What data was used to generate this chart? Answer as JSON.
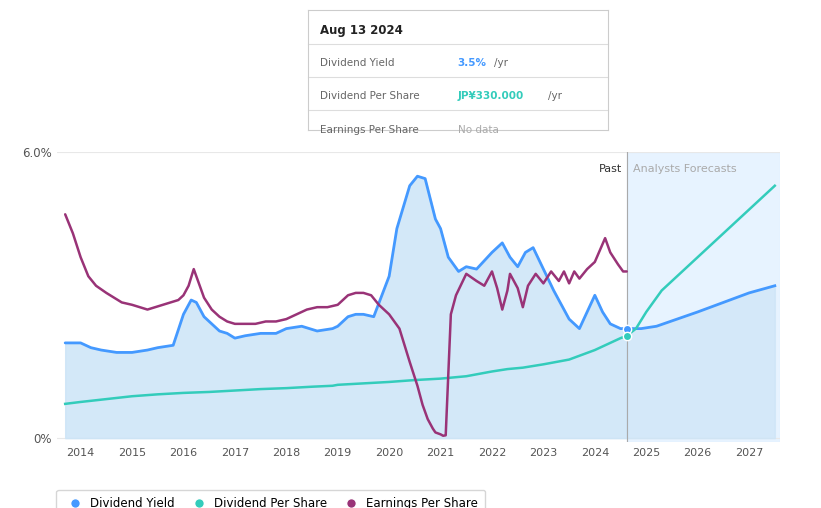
{
  "title_box": {
    "date": "Aug 13 2024",
    "dividend_yield_label": "Dividend Yield",
    "dividend_yield_value": "3.5%",
    "dividend_yield_unit": "/yr",
    "dividend_yield_color": "#4499ff",
    "dividend_per_share_label": "Dividend Per Share",
    "dividend_per_share_value": "JP¥330.000",
    "dividend_per_share_unit": "/yr",
    "dividend_per_share_color": "#33ccbb",
    "earnings_per_share_label": "Earnings Per Share",
    "earnings_per_share_value": "No data",
    "earnings_per_share_color": "#aaaaaa"
  },
  "past_divider": 2024.62,
  "past_label": "Past",
  "forecast_label": "Analysts Forecasts",
  "colors": {
    "dividend_yield": "#4499ff",
    "dividend_per_share": "#33ccbb",
    "earnings_per_share": "#993377",
    "fill_past": "#cce4f7",
    "fill_forecast": "#ddeeff",
    "background": "#ffffff",
    "grid": "#e8e8e8",
    "divider": "#bbbbbb"
  },
  "ylim": [
    0,
    6.0
  ],
  "xlim": [
    2013.55,
    2027.6
  ],
  "legend": [
    {
      "label": "Dividend Yield",
      "color": "#4499ff"
    },
    {
      "label": "Dividend Per Share",
      "color": "#33ccbb"
    },
    {
      "label": "Earnings Per Share",
      "color": "#993377"
    }
  ]
}
